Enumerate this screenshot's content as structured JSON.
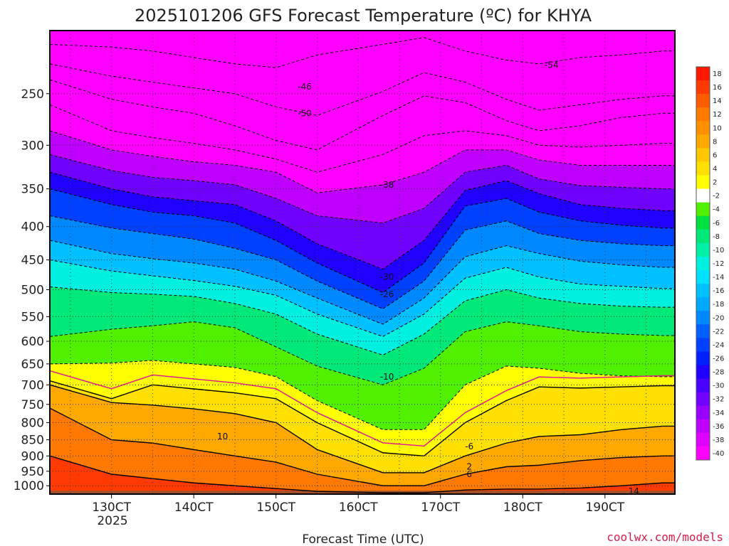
{
  "chart_data": {
    "type": "heatmap",
    "title": "2025101206 GFS Forecast Temperature (ºC) for KHYA",
    "xlabel": "Forecast Time (UTC)",
    "ylabel": "",
    "x_ticks": [
      "130CT",
      "140CT",
      "150CT",
      "160CT",
      "170CT",
      "180CT",
      "190CT"
    ],
    "x_tick_year": "2025",
    "y_scale": "log",
    "y_ticks": [
      250,
      300,
      350,
      400,
      450,
      500,
      550,
      600,
      650,
      700,
      750,
      800,
      850,
      900,
      950,
      1000
    ],
    "ylim": [
      1030,
      200
    ],
    "grid": true,
    "colorbar_ticks": [
      18,
      16,
      14,
      12,
      10,
      8,
      6,
      4,
      2,
      -2,
      -4,
      -6,
      -8,
      -10,
      -12,
      -14,
      -16,
      -18,
      -20,
      -22,
      -24,
      -26,
      -28,
      -30,
      -32,
      -34,
      -36,
      -38,
      -40
    ],
    "colorbar_colors": [
      "#ff1800",
      "#ff3a00",
      "#ff5c00",
      "#ff7800",
      "#ff9000",
      "#ffa800",
      "#ffc800",
      "#ffe000",
      "#ffff00",
      "#ffffff",
      "#50f000",
      "#00e040",
      "#00e878",
      "#00f0a8",
      "#00f0e0",
      "#00e0ff",
      "#00c0ff",
      "#00a8ff",
      "#0088ff",
      "#0060ff",
      "#0040ff",
      "#0020ff",
      "#2000ff",
      "#4800ff",
      "#7000ff",
      "#9800ff",
      "#c000ff",
      "#e000ff",
      "#ff00ff"
    ],
    "x_dates": [
      "130CT",
      "140CT",
      "150CT",
      "160CT",
      "170CT",
      "180CT",
      "190CT"
    ],
    "contour_labels": [
      {
        "value": "-46",
        "x": "150CT",
        "p": 244
      },
      {
        "value": "-50",
        "x": "150CT",
        "p": 268
      },
      {
        "value": "-54",
        "x": "180CT",
        "p": 226
      },
      {
        "value": "-38",
        "x": "160CT",
        "p": 345
      },
      {
        "value": "-30",
        "x": "160CT",
        "p": 478
      },
      {
        "value": "-26",
        "x": "160CT",
        "p": 508
      },
      {
        "value": "-10",
        "x": "160CT",
        "p": 680
      },
      {
        "value": "-6",
        "x": "170CT",
        "p": 870
      },
      {
        "value": "2",
        "x": "170CT",
        "p": 935
      },
      {
        "value": "6",
        "x": "170CT",
        "p": 960
      },
      {
        "value": "10",
        "x": "140CT",
        "p": 840
      },
      {
        "value": "14",
        "x": "190CT",
        "p": 1020
      }
    ],
    "series": [
      {
        "level": -54,
        "p": [
          210,
          212,
          215,
          220,
          225,
          228,
          218,
          210,
          205,
          215,
          222,
          225,
          220,
          218,
          215
        ]
      },
      {
        "level": -50,
        "p": [
          225,
          235,
          240,
          245,
          250,
          262,
          270,
          248,
          232,
          240,
          255,
          265,
          260,
          255,
          252
        ]
      },
      {
        "level": -46,
        "p": [
          238,
          255,
          262,
          268,
          280,
          295,
          305,
          270,
          252,
          258,
          275,
          285,
          280,
          272,
          268
        ]
      },
      {
        "level": -42,
        "p": [
          260,
          285,
          292,
          298,
          305,
          315,
          330,
          310,
          290,
          285,
          290,
          300,
          302,
          300,
          298
        ]
      },
      {
        "level": -38,
        "p": [
          285,
          305,
          312,
          318,
          322,
          330,
          355,
          345,
          330,
          305,
          305,
          316,
          322,
          322,
          322
        ]
      },
      {
        "level": -34,
        "p": [
          310,
          328,
          336,
          340,
          345,
          362,
          385,
          395,
          375,
          330,
          322,
          338,
          346,
          348,
          350
        ]
      },
      {
        "level": -30,
        "p": [
          330,
          350,
          360,
          365,
          370,
          392,
          425,
          465,
          420,
          352,
          340,
          356,
          370,
          375,
          378
        ]
      },
      {
        "level": -26,
        "p": [
          350,
          370,
          380,
          385,
          395,
          420,
          455,
          505,
          455,
          372,
          362,
          380,
          392,
          398,
          402
        ]
      },
      {
        "level": -22,
        "p": [
          385,
          402,
          410,
          418,
          432,
          450,
          485,
          535,
          485,
          405,
          392,
          410,
          420,
          425,
          428
        ]
      },
      {
        "level": -18,
        "p": [
          420,
          440,
          448,
          455,
          465,
          485,
          515,
          565,
          515,
          445,
          428,
          440,
          452,
          458,
          462
        ]
      },
      {
        "level": -14,
        "p": [
          450,
          468,
          476,
          484,
          494,
          510,
          545,
          590,
          545,
          480,
          462,
          478,
          490,
          494,
          498
        ]
      },
      {
        "level": -10,
        "p": [
          495,
          505,
          508,
          512,
          525,
          545,
          585,
          630,
          585,
          520,
          500,
          515,
          525,
          530,
          532
        ]
      },
      {
        "level": -6,
        "p": [
          590,
          575,
          568,
          560,
          572,
          612,
          655,
          700,
          660,
          580,
          560,
          568,
          580,
          585,
          588
        ]
      },
      {
        "level": -2,
        "p": [
          650,
          648,
          642,
          650,
          658,
          680,
          740,
          820,
          820,
          700,
          655,
          660,
          672,
          678,
          680
        ]
      },
      {
        "level": 2,
        "p": [
          690,
          735,
          700,
          710,
          720,
          735,
          800,
          890,
          900,
          800,
          740,
          705,
          708,
          705,
          702
        ]
      },
      {
        "level": 6,
        "p": [
          700,
          745,
          752,
          762,
          775,
          800,
          880,
          955,
          955,
          900,
          860,
          840,
          835,
          820,
          810
        ]
      },
      {
        "level": 10,
        "p": [
          760,
          850,
          860,
          880,
          900,
          920,
          960,
          1000,
          1000,
          960,
          935,
          930,
          915,
          905,
          900
        ]
      },
      {
        "level": 14,
        "p": [
          900,
          960,
          975,
          990,
          1000,
          1010,
          1020,
          1025,
          1025,
          1015,
          1012,
          1012,
          1008,
          1000,
          990
        ]
      }
    ],
    "series_x_days": [
      12.25,
      13,
      13.5,
      14,
      14.5,
      15,
      15.5,
      16.3,
      16.8,
      17.3,
      17.8,
      18.2,
      18.7,
      19.2,
      19.7
    ]
  },
  "footer": {
    "watermark": "coolwx.com/models"
  }
}
